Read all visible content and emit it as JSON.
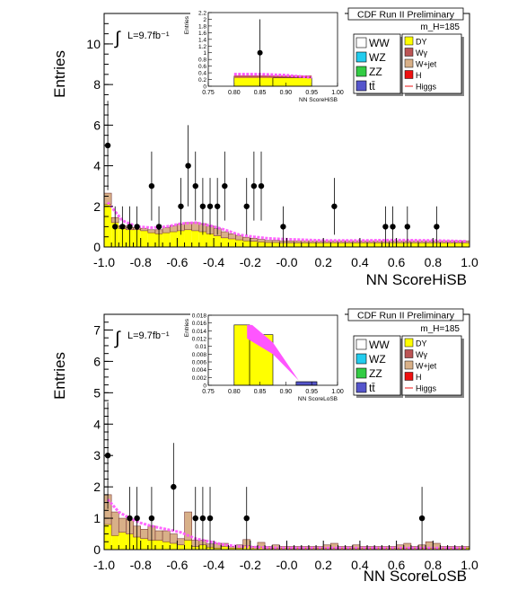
{
  "colors": {
    "WW": "#ffffff",
    "WZ": "#22ccee",
    "ZZ": "#33cc44",
    "tt": "#5555cc",
    "DY": "#ffff00",
    "Wg": "#bb5555",
    "Wjet": "#d8b088",
    "H": "#ee1111",
    "Higgs": "#ff55ff",
    "data": "#000000"
  },
  "chart_data": [
    {
      "type": "bar",
      "name": "HiSB",
      "header": "CDF Run II Preliminary",
      "mass_label": "m_H=185",
      "lumi": "L=9.7fb⁻¹",
      "ylabel": "Entries",
      "xlabel": "NN ScoreHiSB",
      "xlim": [
        -1.0,
        1.0
      ],
      "ylim": [
        0,
        11.5
      ],
      "xticks": [
        "-1.0",
        "-0.8",
        "-0.6",
        "-0.4",
        "-0.2",
        "-0.0",
        "0.2",
        "0.4",
        "0.6",
        "0.8",
        "1.0"
      ],
      "yticks": [
        "0",
        "2",
        "4",
        "6",
        "8",
        "10"
      ],
      "legend_left": [
        "WW",
        "WZ",
        "ZZ",
        "tt̄"
      ],
      "legend_right": [
        "DY",
        "Wγ",
        "W+jet",
        "H",
        "Higgs"
      ],
      "bin_width": 0.04,
      "bkg_dy": [
        2.1,
        1.2,
        0.9,
        0.85,
        0.85,
        0.8,
        0.7,
        0.65,
        0.7,
        0.75,
        0.8,
        0.85,
        0.8,
        0.75,
        0.65,
        0.55,
        0.45,
        0.4,
        0.35,
        0.3,
        0.28,
        0.25,
        0.22,
        0.22,
        0.2,
        0.2,
        0.2,
        0.2,
        0.2,
        0.2,
        0.2,
        0.2,
        0.2,
        0.2,
        0.2,
        0.2,
        0.2,
        0.2,
        0.2,
        0.2,
        0.2,
        0.2,
        0.2,
        0.2,
        0.2,
        0.2,
        0.2,
        0.2,
        0.2,
        0.2
      ],
      "bkg_other": [
        0.55,
        0.25,
        0.15,
        0.1,
        0.1,
        0.12,
        0.15,
        0.2,
        0.25,
        0.3,
        0.32,
        0.35,
        0.4,
        0.4,
        0.38,
        0.35,
        0.3,
        0.25,
        0.22,
        0.18,
        0.15,
        0.12,
        0.1,
        0.1,
        0.1,
        0.1,
        0.1,
        0.1,
        0.1,
        0.1,
        0.1,
        0.1,
        0.1,
        0.1,
        0.1,
        0.1,
        0.1,
        0.1,
        0.1,
        0.1,
        0.1,
        0.1,
        0.1,
        0.1,
        0.1,
        0.1,
        0.1,
        0.1,
        0.1,
        0.1
      ],
      "higgs": [
        [
          -0.98,
          2.2
        ],
        [
          -0.9,
          1.3
        ],
        [
          -0.82,
          1.0
        ],
        [
          -0.74,
          0.95
        ],
        [
          -0.66,
          1.0
        ],
        [
          -0.58,
          1.15
        ],
        [
          -0.5,
          1.2
        ],
        [
          -0.42,
          1.05
        ],
        [
          -0.34,
          0.85
        ],
        [
          -0.26,
          0.6
        ],
        [
          -0.18,
          0.5
        ],
        [
          -0.1,
          0.42
        ],
        [
          0.0,
          0.38
        ],
        [
          0.1,
          0.35
        ],
        [
          0.2,
          0.32
        ],
        [
          0.3,
          0.32
        ],
        [
          0.4,
          0.32
        ],
        [
          0.5,
          0.33
        ],
        [
          0.6,
          0.34
        ],
        [
          0.7,
          0.33
        ],
        [
          0.8,
          0.32
        ],
        [
          0.9,
          0.3
        ],
        [
          0.98,
          0.28
        ]
      ],
      "points": [
        {
          "x": -0.98,
          "y": 5,
          "e": 2.2
        },
        {
          "x": -0.94,
          "y": 1,
          "e": 1.0
        },
        {
          "x": -0.9,
          "y": 1,
          "e": 1.0
        },
        {
          "x": -0.86,
          "y": 1,
          "e": 1.0
        },
        {
          "x": -0.82,
          "y": 1,
          "e": 1.0
        },
        {
          "x": -0.74,
          "y": 3,
          "e": 1.7
        },
        {
          "x": -0.7,
          "y": 1,
          "e": 1.0
        },
        {
          "x": -0.58,
          "y": 2,
          "e": 1.4
        },
        {
          "x": -0.54,
          "y": 4,
          "e": 2.0
        },
        {
          "x": -0.5,
          "y": 3,
          "e": 1.7
        },
        {
          "x": -0.46,
          "y": 2,
          "e": 1.4
        },
        {
          "x": -0.42,
          "y": 2,
          "e": 1.4
        },
        {
          "x": -0.38,
          "y": 2,
          "e": 1.4
        },
        {
          "x": -0.34,
          "y": 3,
          "e": 1.7
        },
        {
          "x": -0.22,
          "y": 2,
          "e": 1.4
        },
        {
          "x": -0.18,
          "y": 3,
          "e": 1.7
        },
        {
          "x": -0.14,
          "y": 3,
          "e": 1.7
        },
        {
          "x": -0.02,
          "y": 1,
          "e": 1.0
        },
        {
          "x": 0.26,
          "y": 2,
          "e": 1.4
        },
        {
          "x": 0.54,
          "y": 1,
          "e": 1.0
        },
        {
          "x": 0.58,
          "y": 1,
          "e": 1.0
        },
        {
          "x": 0.66,
          "y": 1,
          "e": 1.0
        },
        {
          "x": 0.82,
          "y": 1,
          "e": 1.0
        }
      ],
      "inset": {
        "xlabel": "NN ScoreHiSB",
        "ylabel": "Entries",
        "xlim": [
          0.75,
          1.0
        ],
        "ylim": [
          0,
          2.2
        ],
        "xticks": [
          "0.75",
          "0.80",
          "0.85",
          "0.90",
          "0.95",
          "1.00"
        ],
        "yticks": [
          "0",
          "0.2",
          "0.4",
          "0.6",
          "0.8",
          "1",
          "1.2",
          "1.4",
          "1.6",
          "1.8",
          "2",
          "2.2"
        ],
        "bins": [
          [
            0.8,
            0.875,
            0.3
          ],
          [
            0.875,
            0.95,
            0.25
          ]
        ],
        "higgs": [
          [
            0.8,
            0.36
          ],
          [
            0.85,
            0.36
          ],
          [
            0.9,
            0.33
          ],
          [
            0.95,
            0.26
          ]
        ],
        "points": [
          {
            "x": 0.85,
            "y": 1,
            "e": 1.0
          }
        ]
      }
    },
    {
      "type": "bar",
      "name": "LoSB",
      "header": "CDF Run II Preliminary",
      "mass_label": "m_H=185",
      "lumi": "L=9.7fb⁻¹",
      "ylabel": "Entries",
      "xlabel": "NN ScoreLoSB",
      "xlim": [
        -1.0,
        1.0
      ],
      "ylim": [
        0,
        7.5
      ],
      "xticks": [
        "-1.0",
        "-0.8",
        "-0.6",
        "-0.4",
        "-0.2",
        "-0.0",
        "0.2",
        "0.4",
        "0.6",
        "0.8",
        "1.0"
      ],
      "yticks": [
        "0",
        "1",
        "2",
        "3",
        "4",
        "5",
        "6",
        "7"
      ],
      "legend_left": [
        "WW",
        "WZ",
        "ZZ",
        "tt̄"
      ],
      "legend_right": [
        "DY",
        "Wγ",
        "W+jet",
        "H",
        "Higgs"
      ],
      "bin_width": 0.04,
      "bkg_dy": [
        0.8,
        0.45,
        0.55,
        0.5,
        0.4,
        0.35,
        0.3,
        0.3,
        0.25,
        0.2,
        0.15,
        0.3,
        0.1,
        0.15,
        0.08,
        0.05,
        0.1,
        0.05,
        0.05,
        0.12,
        0.05,
        0.08,
        0.05,
        0.05,
        0.05,
        0.05,
        0.05,
        0.05,
        0.05,
        0.05,
        0.05,
        0.05,
        0.05,
        0.05,
        0.05,
        0.05,
        0.05,
        0.05,
        0.05,
        0.05,
        0.05,
        0.05,
        0.05,
        0.05,
        0.05,
        0.05,
        0.05,
        0.05,
        0.05,
        0.05
      ],
      "bkg_other": [
        0.95,
        0.75,
        0.45,
        0.45,
        0.35,
        0.3,
        0.45,
        0.3,
        0.35,
        0.3,
        0.2,
        0.9,
        0.2,
        0.15,
        0.1,
        0.15,
        0.1,
        0.05,
        0.1,
        0.2,
        0.05,
        0.15,
        0.05,
        0.1,
        0.05,
        0.05,
        0.05,
        0.05,
        0.05,
        0.05,
        0.1,
        0.15,
        0.05,
        0.05,
        0.1,
        0.05,
        0.05,
        0.05,
        0.05,
        0.05,
        0.1,
        0.15,
        0.05,
        0.1,
        0.2,
        0.15,
        0.05,
        0.05,
        0.05,
        0.05
      ],
      "higgs": [
        [
          -0.98,
          1.6
        ],
        [
          -0.92,
          1.2
        ],
        [
          -0.86,
          1.0
        ],
        [
          -0.8,
          0.85
        ],
        [
          -0.74,
          0.75
        ],
        [
          -0.66,
          0.65
        ],
        [
          -0.58,
          0.55
        ],
        [
          -0.5,
          0.35
        ],
        [
          -0.42,
          0.25
        ],
        [
          -0.34,
          0.15
        ],
        [
          -0.26,
          0.1
        ],
        [
          -0.18,
          0.08
        ],
        [
          -0.1,
          0.06
        ],
        [
          0.0,
          0.05
        ],
        [
          0.2,
          0.05
        ],
        [
          0.4,
          0.05
        ],
        [
          0.6,
          0.05
        ],
        [
          0.8,
          0.05
        ],
        [
          0.98,
          0.05
        ]
      ],
      "points": [
        {
          "x": -0.98,
          "y": 3,
          "e": 1.7
        },
        {
          "x": -0.86,
          "y": 1,
          "e": 1.0
        },
        {
          "x": -0.82,
          "y": 1,
          "e": 1.0
        },
        {
          "x": -0.74,
          "y": 1,
          "e": 1.0
        },
        {
          "x": -0.62,
          "y": 2,
          "e": 1.4
        },
        {
          "x": -0.5,
          "y": 1,
          "e": 1.0
        },
        {
          "x": -0.46,
          "y": 1,
          "e": 1.0
        },
        {
          "x": -0.42,
          "y": 1,
          "e": 1.0
        },
        {
          "x": -0.22,
          "y": 1,
          "e": 1.0
        },
        {
          "x": 0.74,
          "y": 1,
          "e": 1.0
        }
      ],
      "inset": {
        "xlabel": "NN ScoreLoSB",
        "ylabel": "Entries",
        "xlim": [
          0.75,
          1.0
        ],
        "ylim": [
          0,
          0.018
        ],
        "xticks": [
          "0.75",
          "0.80",
          "0.85",
          "0.90",
          "0.95",
          "1.00"
        ],
        "yticks": [
          "0",
          "0.002",
          "0.004",
          "0.006",
          "0.008",
          "0.01",
          "0.012",
          "0.014",
          "0.016",
          "0.018"
        ],
        "bins": [
          [
            0.8,
            0.83,
            0.0155
          ],
          [
            0.83,
            0.875,
            0.013
          ],
          [
            0.92,
            0.96,
            0.0009
          ]
        ],
        "higgs": [
          [
            0.825,
            0.0155
          ],
          [
            0.855,
            0.012
          ],
          [
            0.875,
            0.009
          ],
          [
            0.92,
            0.0009
          ]
        ],
        "points": []
      }
    }
  ]
}
